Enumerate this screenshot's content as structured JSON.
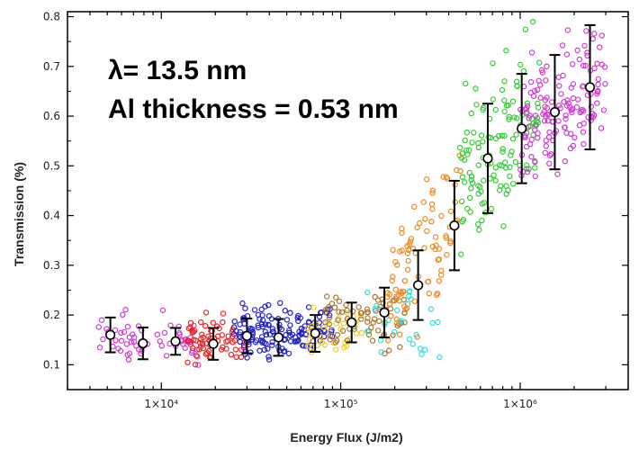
{
  "chart_data": {
    "type": "scatter",
    "title": "",
    "xlabel": "Energy Flux (J/m2)",
    "ylabel": "Transmission (%)",
    "x_scale": "log",
    "xlim": [
      3000,
      4000000
    ],
    "ylim": [
      0.05,
      0.81
    ],
    "x_ticks": [
      {
        "value": 10000,
        "label": "1×10⁴"
      },
      {
        "value": 100000,
        "label": "1×10⁵"
      },
      {
        "value": 1000000,
        "label": "1×10⁶"
      }
    ],
    "y_ticks": [
      {
        "value": 0.1,
        "label": "0.1"
      },
      {
        "value": 0.2,
        "label": "0.2"
      },
      {
        "value": 0.3,
        "label": "0.3"
      },
      {
        "value": 0.4,
        "label": "0.4"
      },
      {
        "value": 0.5,
        "label": "0.5"
      },
      {
        "value": 0.6,
        "label": "0.6"
      },
      {
        "value": 0.7,
        "label": "0.7"
      },
      {
        "value": 0.8,
        "label": "0.8"
      }
    ],
    "grid": false,
    "legend": "none",
    "annotations": [
      {
        "text": "λ= 13.5 nm",
        "position": "top-left"
      },
      {
        "text": "Al thickness = 0.53 nm",
        "position": "top-left"
      }
    ],
    "mean_points": [
      {
        "x": 5200,
        "y": 0.16,
        "err": 0.035
      },
      {
        "x": 7900,
        "y": 0.143,
        "err": 0.032
      },
      {
        "x": 12000,
        "y": 0.147,
        "err": 0.027
      },
      {
        "x": 19500,
        "y": 0.142,
        "err": 0.032
      },
      {
        "x": 30000,
        "y": 0.158,
        "err": 0.035
      },
      {
        "x": 45000,
        "y": 0.155,
        "err": 0.037
      },
      {
        "x": 72000,
        "y": 0.163,
        "err": 0.037
      },
      {
        "x": 115000,
        "y": 0.185,
        "err": 0.04
      },
      {
        "x": 175000,
        "y": 0.205,
        "err": 0.05
      },
      {
        "x": 270000,
        "y": 0.26,
        "err": 0.07
      },
      {
        "x": 430000,
        "y": 0.38,
        "err": 0.09
      },
      {
        "x": 660000,
        "y": 0.515,
        "err": 0.11
      },
      {
        "x": 1020000,
        "y": 0.575,
        "err": 0.11
      },
      {
        "x": 1560000,
        "y": 0.608,
        "err": 0.115
      },
      {
        "x": 2450000,
        "y": 0.658,
        "err": 0.125
      }
    ],
    "clusters": [
      {
        "color": "#d23bd2",
        "x_min": 4200,
        "x_max": 9500,
        "y_center": 0.15,
        "y_spread": 0.022,
        "count": 34
      },
      {
        "color": "#d23bd2",
        "x_min": 9500,
        "x_max": 17000,
        "y_center": 0.15,
        "y_spread": 0.02,
        "count": 30
      },
      {
        "color": "#ee2222",
        "x_min": 14000,
        "x_max": 30000,
        "y_center": 0.15,
        "y_spread": 0.022,
        "count": 70
      },
      {
        "color": "#2222cc",
        "x_min": 25000,
        "x_max": 90000,
        "y_center": 0.162,
        "y_spread": 0.026,
        "count": 150
      },
      {
        "color": "#eecc22",
        "x_min": 65000,
        "x_max": 140000,
        "y_center": 0.175,
        "y_spread": 0.03,
        "count": 35
      },
      {
        "color": "#aa7733",
        "x_min": 80000,
        "x_max": 230000,
        "y_center": 0.19,
        "y_spread": 0.03,
        "count": 70
      },
      {
        "color": "#33dddd",
        "x_min": 140000,
        "x_max": 360000,
        "y_center": 0.19,
        "y_spread": 0.035,
        "count": 28
      },
      {
        "color": "#ee8822",
        "x_min": 180000,
        "x_max": 480000,
        "y_center": 0.3,
        "y_spread": 0.07,
        "count": 90
      },
      {
        "color": "#33cc33",
        "x_min": 460000,
        "x_max": 1300000,
        "y_center": 0.55,
        "y_spread": 0.08,
        "count": 130
      },
      {
        "color": "#d23bd2",
        "x_min": 1000000,
        "x_max": 3000000,
        "y_center": 0.62,
        "y_spread": 0.06,
        "count": 150
      }
    ]
  }
}
